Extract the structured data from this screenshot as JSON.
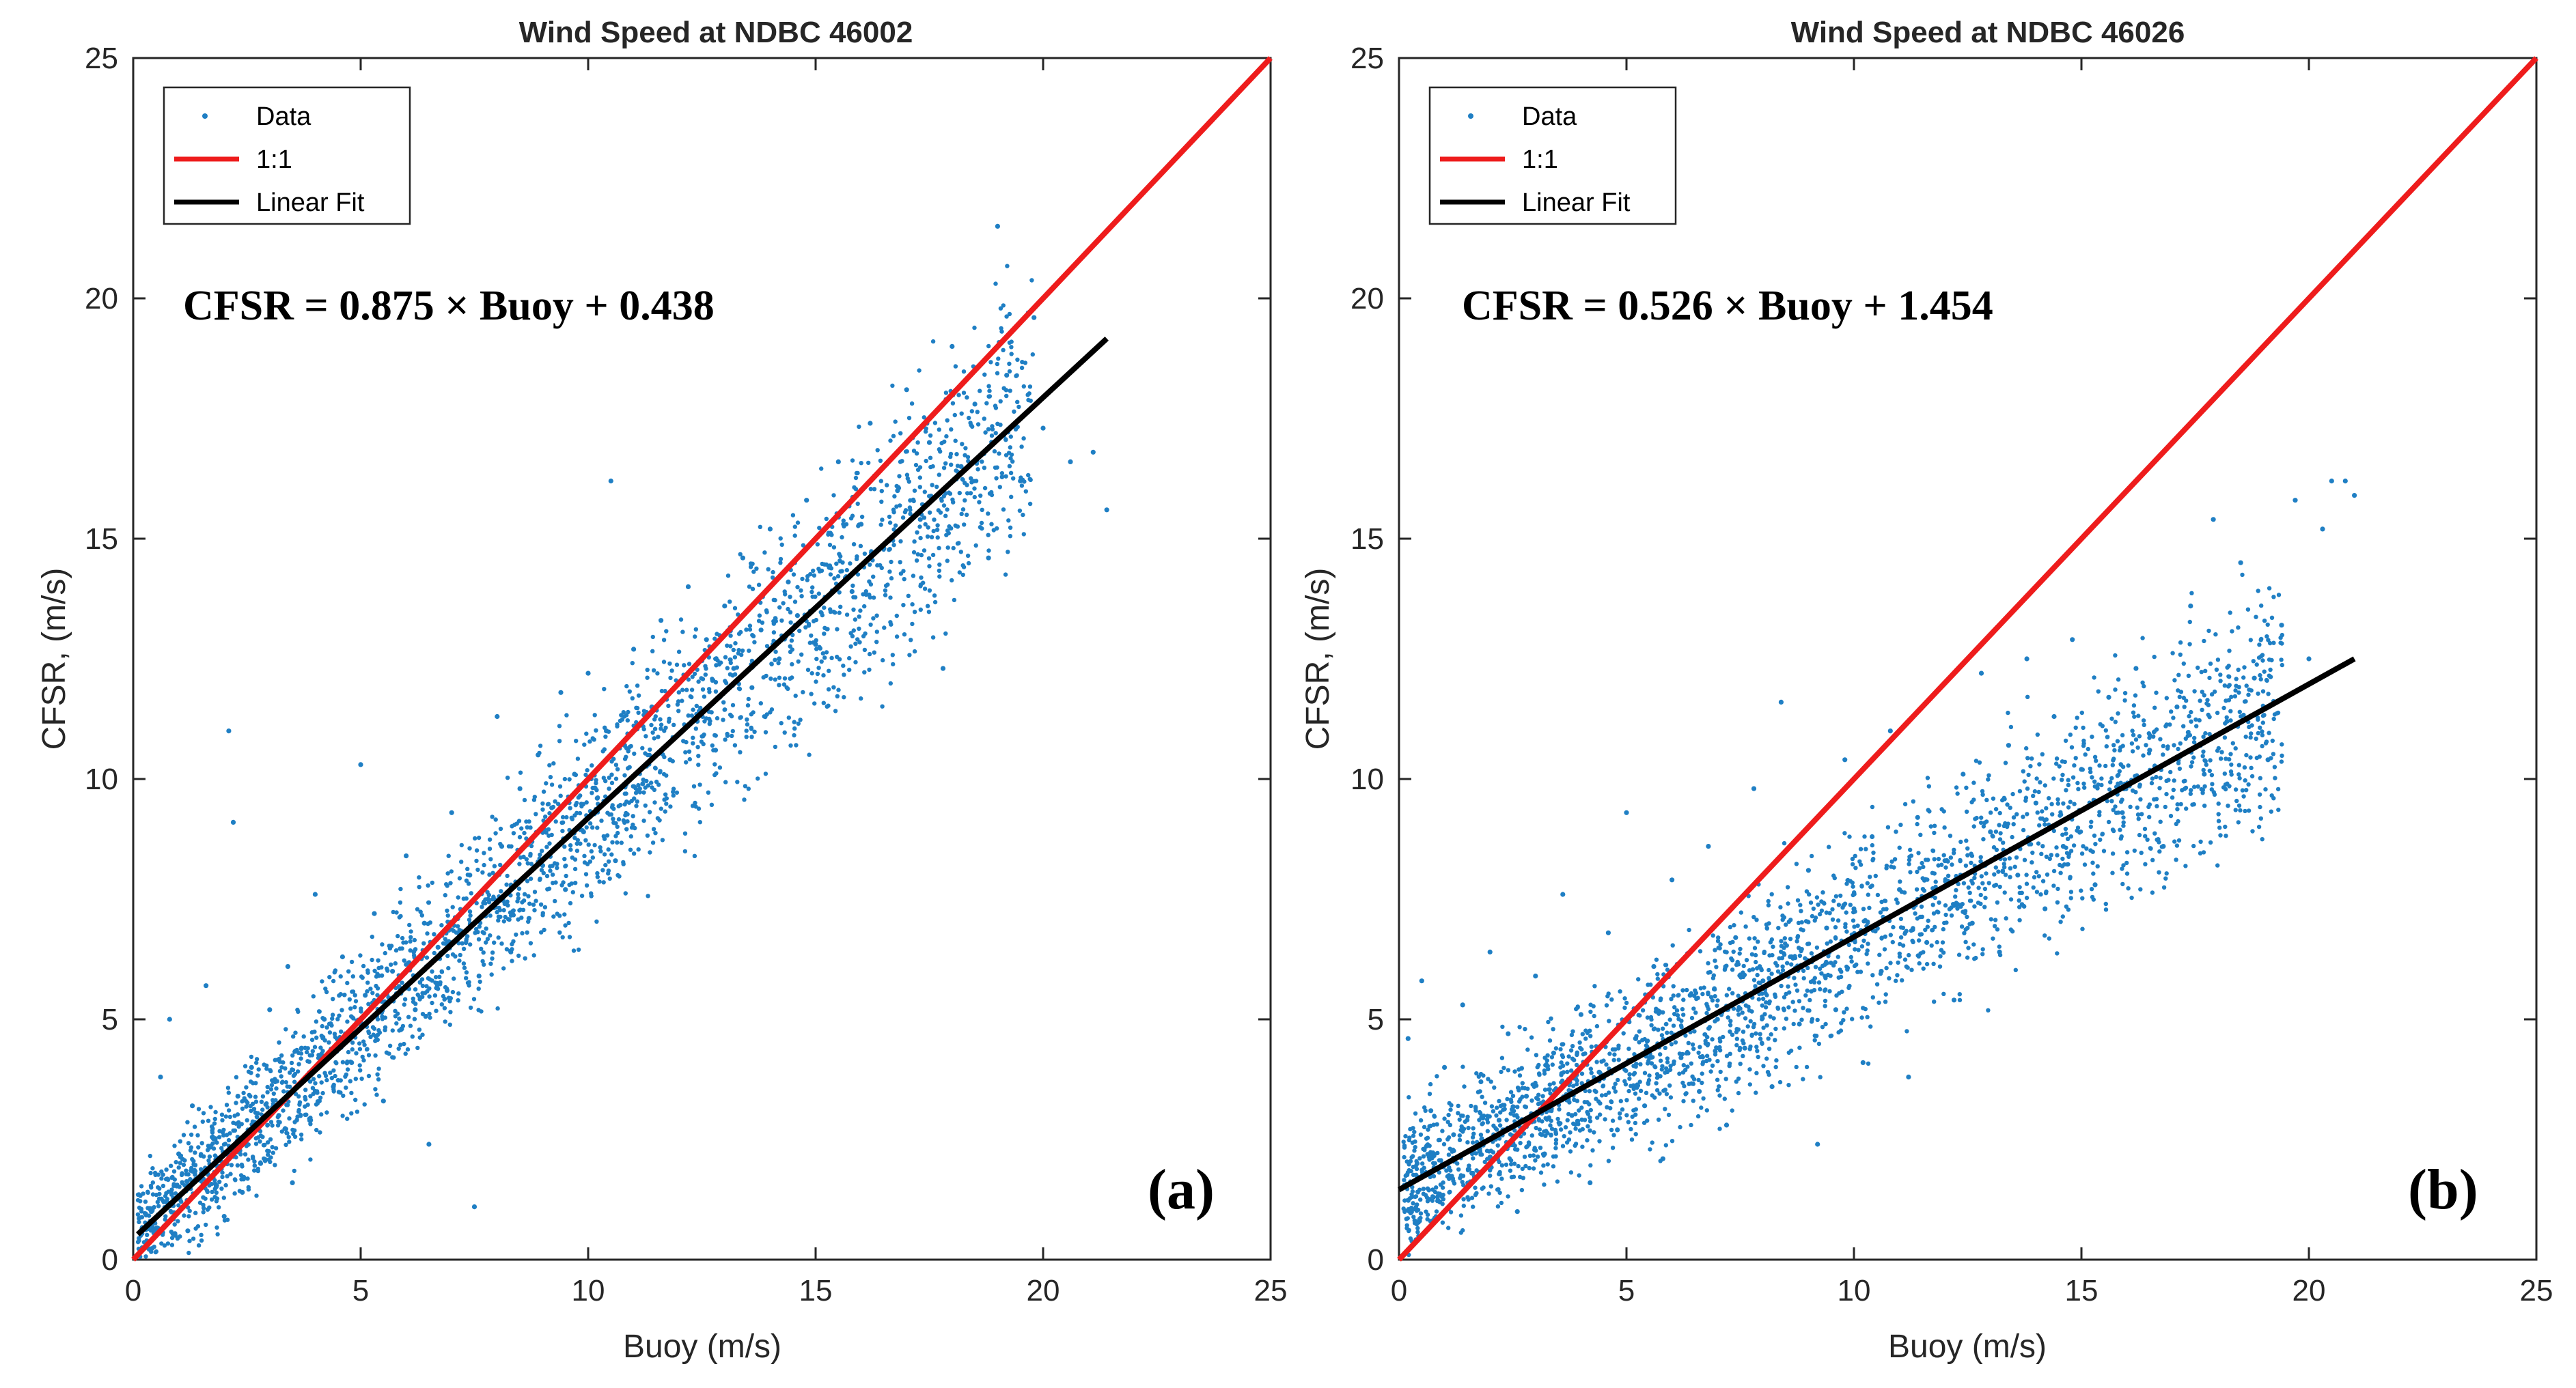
{
  "colors": {
    "data": "#1f7fc4",
    "one_to_one": "#ee1c1c",
    "linear_fit": "#000000",
    "axes": "#262626"
  },
  "chart_data": [
    {
      "type": "scatter",
      "title": "Wind Speed at NDBC 46002",
      "xlabel": "Buoy (m/s)",
      "ylabel": "CFSR, (m/s)",
      "xlim": [
        0,
        25
      ],
      "ylim": [
        0,
        25
      ],
      "xticks": [
        0,
        5,
        10,
        15,
        20,
        25
      ],
      "yticks": [
        0,
        5,
        10,
        15,
        20,
        25
      ],
      "xtick_labels": [
        "0",
        "5",
        "10",
        "15",
        "20",
        "25"
      ],
      "ytick_labels": [
        "0",
        "5",
        "10",
        "15",
        "20",
        "25"
      ],
      "grid": false,
      "legend_position": "top-left",
      "legend": [
        "Data",
        "1:1",
        "Linear Fit"
      ],
      "annotation": "CFSR = 0.875 × Buoy + 0.438",
      "panel_label": "(a)",
      "series": [
        {
          "name": "Data",
          "marker": "dot",
          "points": [
            [
              0.4,
              1.0
            ],
            [
              0.6,
              3.8
            ],
            [
              0.8,
              5.0
            ],
            [
              1.0,
              2.2
            ],
            [
              1.2,
              0.6
            ],
            [
              1.3,
              3.2
            ],
            [
              1.5,
              1.8
            ],
            [
              1.6,
              5.7
            ],
            [
              1.8,
              2.5
            ],
            [
              2.0,
              0.9
            ],
            [
              2.1,
              11.0
            ],
            [
              2.2,
              9.1
            ],
            [
              2.3,
              3.4
            ],
            [
              2.4,
              1.4
            ],
            [
              2.6,
              4.0
            ],
            [
              2.8,
              2.0
            ],
            [
              3.0,
              5.2
            ],
            [
              3.2,
              3.0
            ],
            [
              3.4,
              6.1
            ],
            [
              3.5,
              1.6
            ],
            [
              3.7,
              4.4
            ],
            [
              3.9,
              2.9
            ],
            [
              4.0,
              7.6
            ],
            [
              4.2,
              5.0
            ],
            [
              4.4,
              3.6
            ],
            [
              4.6,
              6.3
            ],
            [
              4.8,
              4.1
            ],
            [
              5.0,
              10.3
            ],
            [
              5.1,
              5.5
            ],
            [
              5.3,
              7.2
            ],
            [
              5.5,
              3.3
            ],
            [
              5.7,
              6.0
            ],
            [
              5.9,
              4.8
            ],
            [
              6.0,
              8.4
            ],
            [
              6.2,
              5.2
            ],
            [
              6.4,
              7.0
            ],
            [
              6.5,
              2.4
            ],
            [
              6.7,
              6.5
            ],
            [
              6.9,
              5.6
            ],
            [
              7.0,
              9.3
            ],
            [
              7.2,
              6.8
            ],
            [
              7.4,
              8.0
            ],
            [
              7.5,
              1.1
            ],
            [
              7.6,
              5.9
            ],
            [
              7.8,
              7.5
            ],
            [
              8.0,
              11.3
            ],
            [
              8.1,
              8.6
            ],
            [
              8.3,
              6.4
            ],
            [
              8.5,
              9.8
            ],
            [
              8.7,
              7.1
            ],
            [
              8.9,
              10.5
            ],
            [
              9.0,
              8.2
            ],
            [
              9.2,
              9.4
            ],
            [
              9.4,
              11.8
            ],
            [
              9.5,
              7.7
            ],
            [
              9.7,
              10.1
            ],
            [
              9.9,
              8.9
            ],
            [
              10.0,
              12.2
            ],
            [
              10.2,
              9.6
            ],
            [
              10.4,
              11.0
            ],
            [
              10.5,
              16.2
            ],
            [
              10.6,
              8.3
            ],
            [
              10.8,
              10.7
            ],
            [
              11.0,
              12.7
            ],
            [
              11.2,
              9.9
            ],
            [
              11.4,
              11.5
            ],
            [
              11.6,
              13.3
            ],
            [
              11.8,
              10.4
            ],
            [
              12.0,
              12.0
            ],
            [
              12.2,
              14.0
            ],
            [
              12.4,
              11.2
            ],
            [
              12.6,
              12.9
            ],
            [
              12.8,
              10.6
            ],
            [
              13.0,
              13.6
            ],
            [
              13.2,
              12.3
            ],
            [
              13.4,
              14.6
            ],
            [
              13.6,
              11.9
            ],
            [
              13.8,
              13.1
            ],
            [
              14.0,
              15.2
            ],
            [
              14.2,
              12.5
            ],
            [
              14.4,
              14.1
            ],
            [
              14.6,
              13.4
            ],
            [
              14.8,
              15.8
            ],
            [
              15.0,
              12.8
            ],
            [
              15.3,
              14.4
            ],
            [
              15.5,
              16.6
            ],
            [
              15.8,
              13.9
            ],
            [
              16.0,
              15.3
            ],
            [
              16.2,
              17.4
            ],
            [
              16.5,
              14.8
            ],
            [
              16.8,
              16.0
            ],
            [
              17.0,
              18.1
            ],
            [
              17.3,
              15.4
            ],
            [
              17.5,
              17.0
            ],
            [
              17.8,
              12.3
            ],
            [
              18.0,
              19.0
            ],
            [
              18.2,
              16.5
            ],
            [
              18.5,
              17.8
            ],
            [
              18.8,
              14.6
            ],
            [
              19.0,
              21.5
            ],
            [
              19.2,
              18.4
            ],
            [
              19.5,
              16.2
            ],
            [
              19.8,
              19.6
            ],
            [
              20.0,
              17.3
            ],
            [
              20.6,
              16.6
            ],
            [
              21.1,
              16.8
            ],
            [
              21.4,
              15.6
            ]
          ]
        },
        {
          "name": "1:1",
          "points": [
            [
              0,
              0
            ],
            [
              25,
              25
            ]
          ]
        },
        {
          "name": "Linear Fit",
          "points": [
            [
              0.1,
              0.526
            ],
            [
              21.4,
              19.163
            ]
          ]
        }
      ]
    },
    {
      "type": "scatter",
      "title": "Wind Speed at NDBC 46026",
      "xlabel": "Buoy (m/s)",
      "ylabel": "CFSR, (m/s)",
      "xlim": [
        0,
        25
      ],
      "ylim": [
        0,
        25
      ],
      "xticks": [
        0,
        5,
        10,
        15,
        20,
        25
      ],
      "yticks": [
        0,
        5,
        10,
        15,
        20,
        25
      ],
      "xtick_labels": [
        "0",
        "5",
        "10",
        "15",
        "20",
        "25"
      ],
      "ytick_labels": [
        "0",
        "5",
        "10",
        "15",
        "20",
        "25"
      ],
      "grid": false,
      "legend_position": "top-left",
      "legend": [
        "Data",
        "1:1",
        "Linear Fit"
      ],
      "annotation": "CFSR = 0.526 × Buoy + 1.454",
      "panel_label": "(b)",
      "series": [
        {
          "name": "Data",
          "marker": "dot",
          "points": [
            [
              0.2,
              4.6
            ],
            [
              0.4,
              2.0
            ],
            [
              0.5,
              5.8
            ],
            [
              0.7,
              3.1
            ],
            [
              0.9,
              1.2
            ],
            [
              1.0,
              4.0
            ],
            [
              1.2,
              2.6
            ],
            [
              1.4,
              5.3
            ],
            [
              1.6,
              1.8
            ],
            [
              1.8,
              3.7
            ],
            [
              2.0,
              6.4
            ],
            [
              2.2,
              2.9
            ],
            [
              2.4,
              4.7
            ],
            [
              2.6,
              1.0
            ],
            [
              2.8,
              3.4
            ],
            [
              3.0,
              5.9
            ],
            [
              3.2,
              2.2
            ],
            [
              3.4,
              4.3
            ],
            [
              3.6,
              7.6
            ],
            [
              3.8,
              3.0
            ],
            [
              4.0,
              5.1
            ],
            [
              4.2,
              1.6
            ],
            [
              4.4,
              3.9
            ],
            [
              4.6,
              6.8
            ],
            [
              4.8,
              2.7
            ],
            [
              5.0,
              9.3
            ],
            [
              5.2,
              4.6
            ],
            [
              5.4,
              3.2
            ],
            [
              5.6,
              6.1
            ],
            [
              5.8,
              2.1
            ],
            [
              6.0,
              7.9
            ],
            [
              6.2,
              4.2
            ],
            [
              6.4,
              5.5
            ],
            [
              6.6,
              3.5
            ],
            [
              6.8,
              8.6
            ],
            [
              7.0,
              5.0
            ],
            [
              7.2,
              2.8
            ],
            [
              7.4,
              6.7
            ],
            [
              7.6,
              4.4
            ],
            [
              7.8,
              9.8
            ],
            [
              8.0,
              5.8
            ],
            [
              8.2,
              3.6
            ],
            [
              8.4,
              11.6
            ],
            [
              8.6,
              6.3
            ],
            [
              8.8,
              4.9
            ],
            [
              9.0,
              8.1
            ],
            [
              9.2,
              2.4
            ],
            [
              9.4,
              6.9
            ],
            [
              9.6,
              5.2
            ],
            [
              9.8,
              10.4
            ],
            [
              10.0,
              7.3
            ],
            [
              10.2,
              4.1
            ],
            [
              10.4,
              8.8
            ],
            [
              10.6,
              6.0
            ],
            [
              10.8,
              11.0
            ],
            [
              11.0,
              7.7
            ],
            [
              11.2,
              3.8
            ],
            [
              11.4,
              9.2
            ],
            [
              11.6,
              6.6
            ],
            [
              11.8,
              11.8
            ],
            [
              12.0,
              8.3
            ],
            [
              12.2,
              5.4
            ],
            [
              12.4,
              10.1
            ],
            [
              12.6,
              7.0
            ],
            [
              12.8,
              12.2
            ],
            [
              13.0,
              8.9
            ],
            [
              13.2,
              6.4
            ],
            [
              13.4,
              10.7
            ],
            [
              13.6,
              8.0
            ],
            [
              13.8,
              12.5
            ],
            [
              14.0,
              9.5
            ],
            [
              14.2,
              7.3
            ],
            [
              14.4,
              11.3
            ],
            [
              14.6,
              8.6
            ],
            [
              14.8,
              12.9
            ],
            [
              15.0,
              10.2
            ],
            [
              15.3,
              7.8
            ],
            [
              15.6,
              11.7
            ],
            [
              15.9,
              9.3
            ],
            [
              16.2,
              12.3
            ],
            [
              16.5,
              10.6
            ],
            [
              16.8,
              8.6
            ],
            [
              17.1,
              11.5
            ],
            [
              17.4,
              13.6
            ],
            [
              17.7,
              10.1
            ],
            [
              17.9,
              15.4
            ],
            [
              18.2,
              11.2
            ],
            [
              18.5,
              14.5
            ],
            [
              18.8,
              12.1
            ],
            [
              19.1,
              10.4
            ],
            [
              19.4,
              13.2
            ],
            [
              19.7,
              15.8
            ],
            [
              20.0,
              12.5
            ],
            [
              20.3,
              15.2
            ],
            [
              20.5,
              16.2
            ],
            [
              20.8,
              16.2
            ],
            [
              21.0,
              15.9
            ]
          ]
        },
        {
          "name": "1:1",
          "points": [
            [
              0,
              0
            ],
            [
              25,
              25
            ]
          ]
        },
        {
          "name": "Linear Fit",
          "points": [
            [
              0,
              1.454
            ],
            [
              21.0,
              12.5
            ]
          ]
        }
      ]
    }
  ]
}
